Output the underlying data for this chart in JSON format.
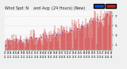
{
  "title": "Wind Spd: N    and Avg: (24 Hours) (New)",
  "title_fontsize": 3.5,
  "background_color": "#f0f0f0",
  "plot_bg_color": "#f8f8f8",
  "grid_color": "#cccccc",
  "bar_color": "#cc2222",
  "avg_color": "#2244cc",
  "n_points": 250,
  "seed": 7,
  "ylim": [
    0,
    8
  ],
  "yticks": [
    1,
    3,
    5,
    7
  ],
  "legend_bar_label": "",
  "legend_avg_label": "",
  "right_labels": true
}
